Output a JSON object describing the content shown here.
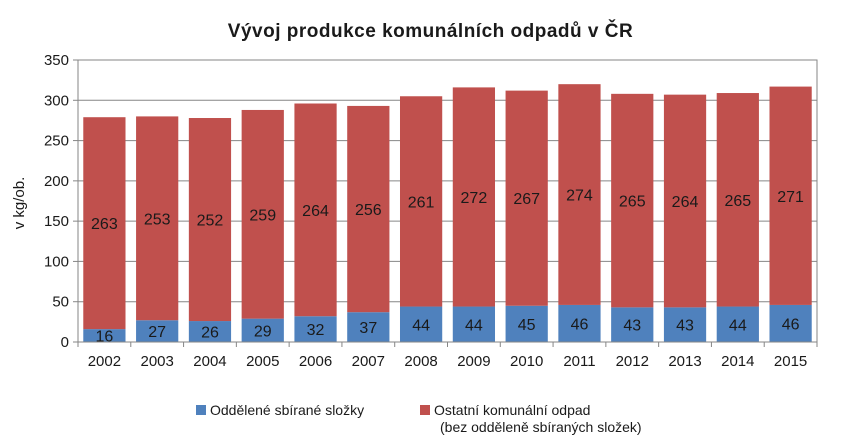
{
  "chart_data": {
    "type": "bar",
    "stacked": true,
    "title": "Vývoj produkce komunálních odpadů v ČR",
    "ylabel": "v kg/ob.",
    "xlabel": "",
    "ylim": [
      0,
      350
    ],
    "yticks": [
      0,
      50,
      100,
      150,
      200,
      250,
      300,
      350
    ],
    "grid": true,
    "legend_position": "bottom",
    "categories": [
      "2002",
      "2003",
      "2004",
      "2005",
      "2006",
      "2007",
      "2008",
      "2009",
      "2010",
      "2011",
      "2012",
      "2013",
      "2014",
      "2015"
    ],
    "series": [
      {
        "name": "Oddělené sbírané složky",
        "color": "#4f81bd",
        "values": [
          16,
          27,
          26,
          29,
          32,
          37,
          44,
          44,
          45,
          46,
          43,
          43,
          44,
          46
        ]
      },
      {
        "name": "Ostatní komunální odpad",
        "name_line2": "(bez odděleně sbíraných složek)",
        "color": "#c0504d",
        "values": [
          263,
          253,
          252,
          259,
          264,
          256,
          261,
          272,
          267,
          274,
          265,
          264,
          265,
          271
        ]
      }
    ]
  }
}
